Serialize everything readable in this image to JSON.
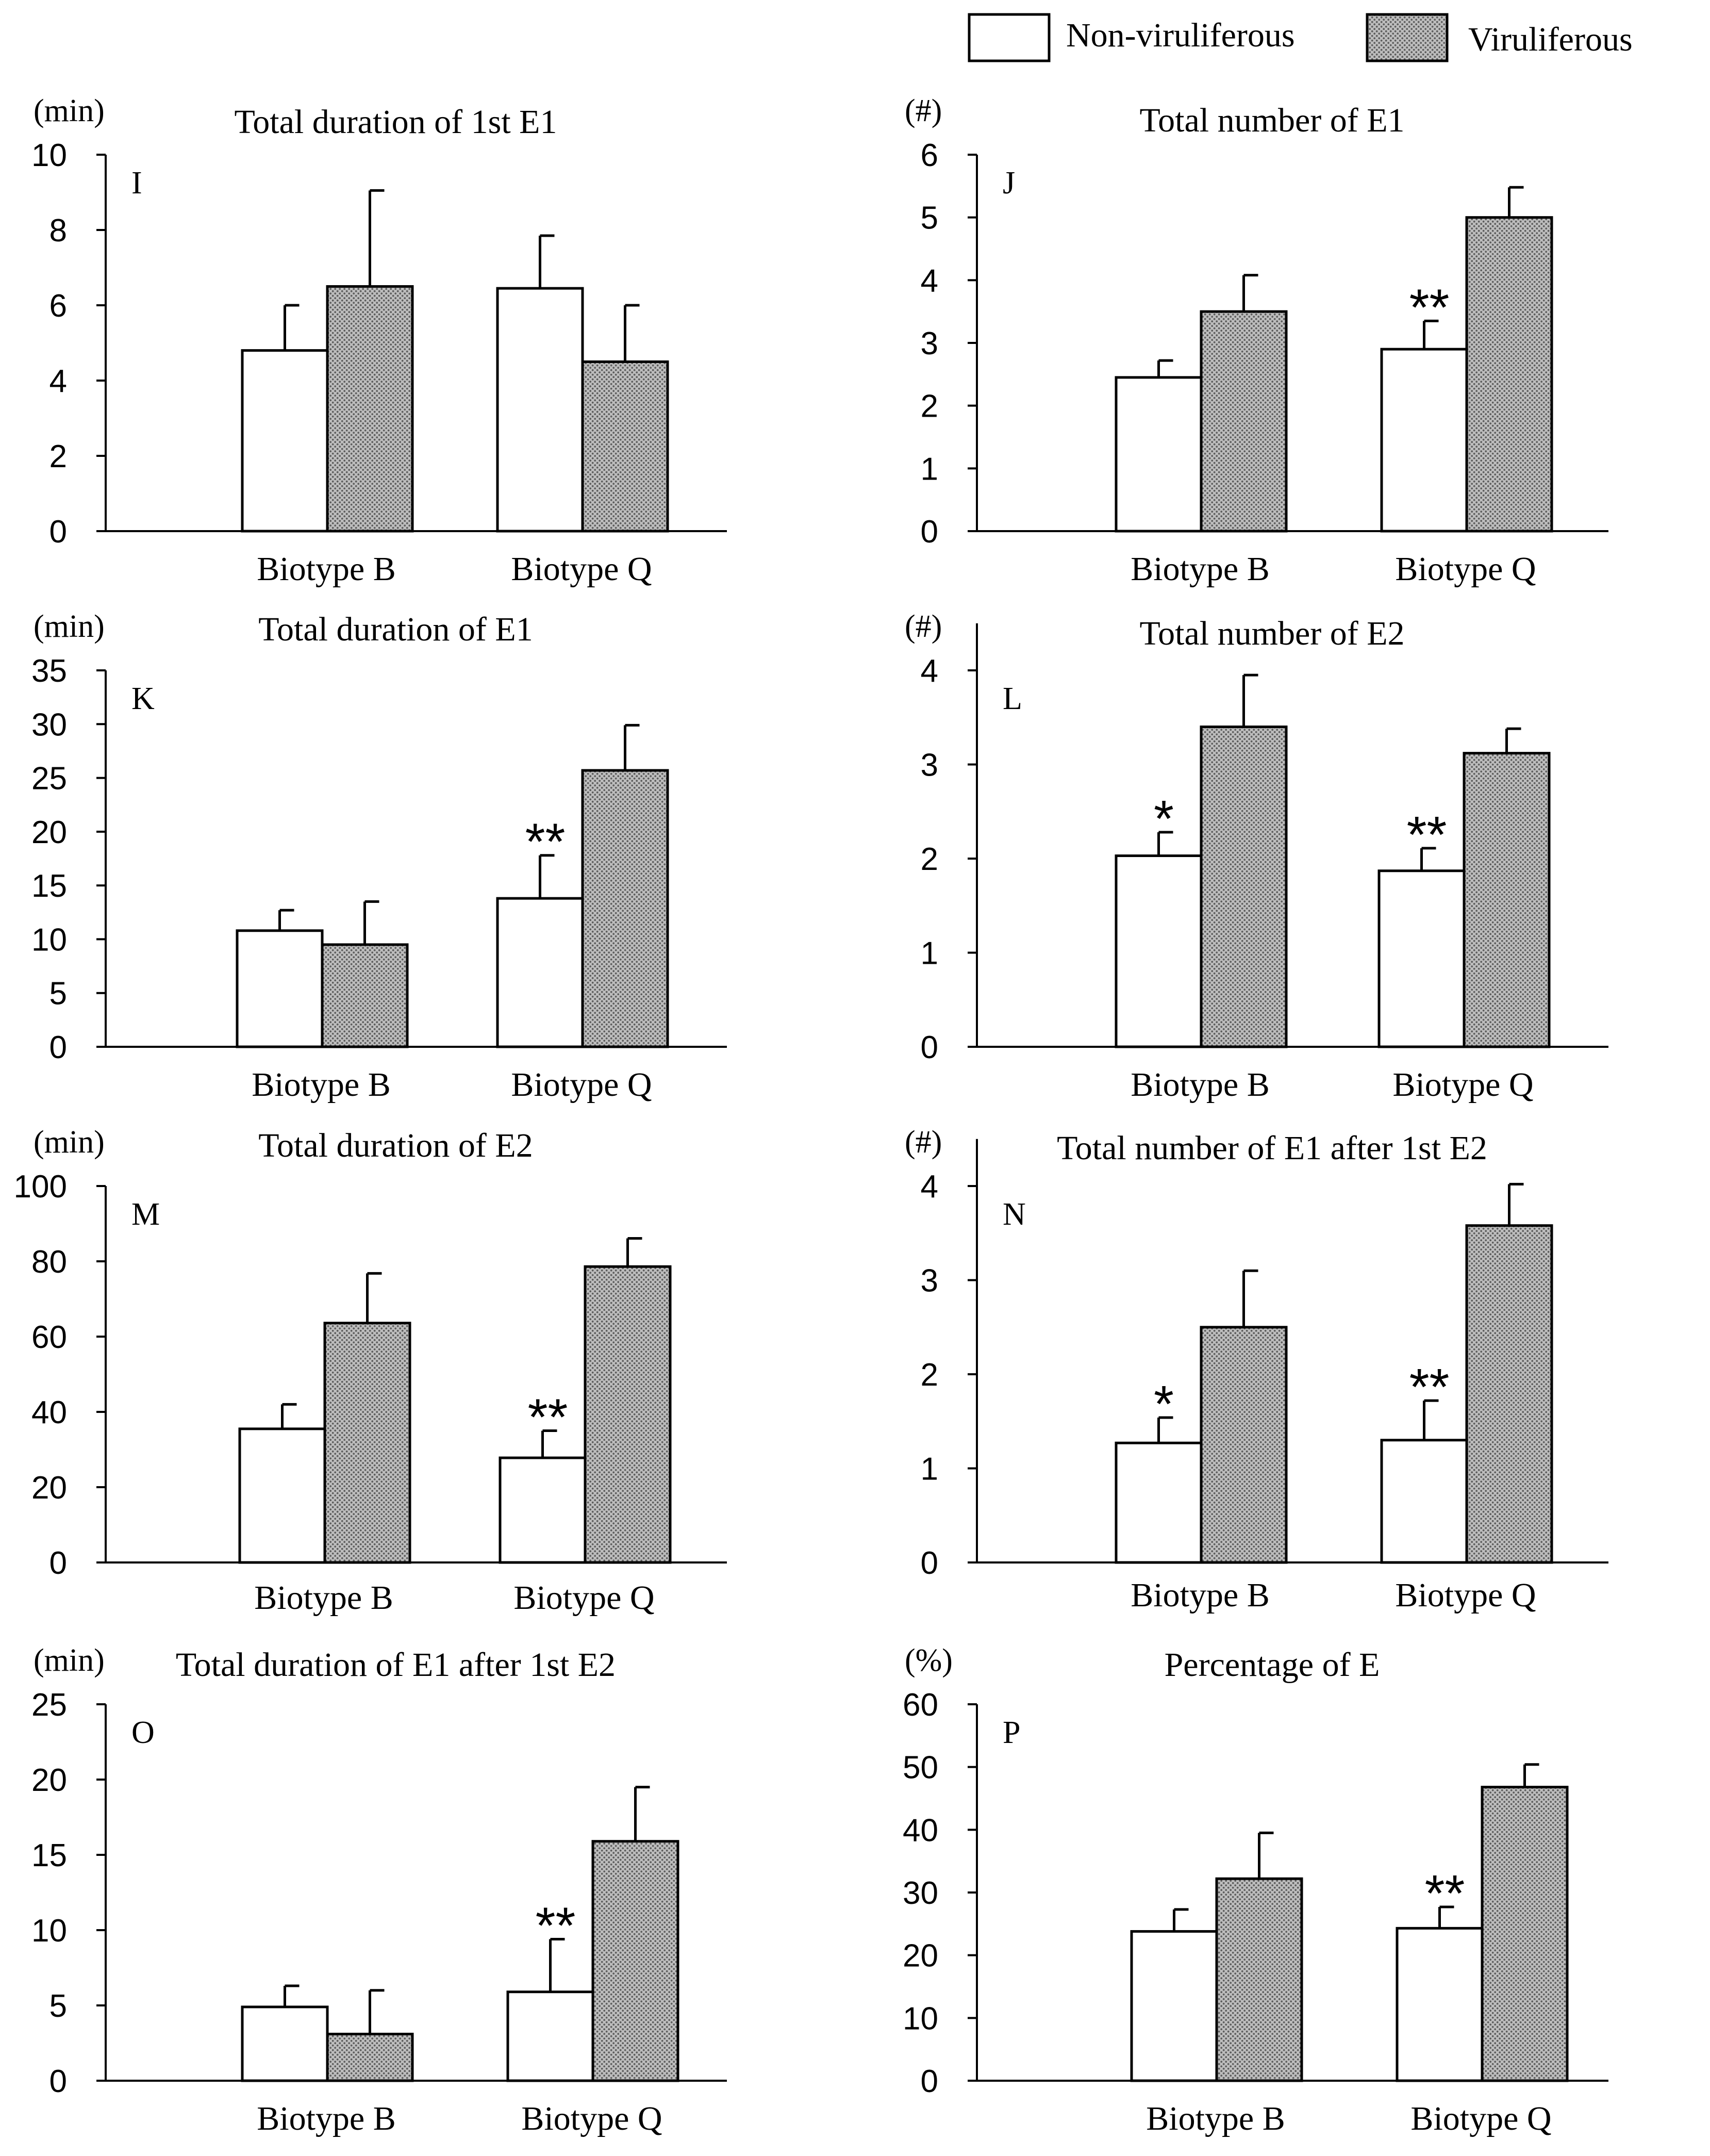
{
  "legend": {
    "items": [
      {
        "label": "Non-viruliferous",
        "fill": "#ffffff"
      },
      {
        "label": "Viruliferous",
        "fill": "#b0b0b0"
      }
    ]
  },
  "colors": {
    "axis": "#000000",
    "bar_stroke": "#000000",
    "hatch_bg": "#bdbdbd",
    "hatch_dot": "#5e5e5e"
  },
  "chart_data": [
    {
      "type": "bar",
      "panel": "I",
      "title": "Total duration of 1st E1",
      "ylabel": "(min)",
      "ylim": [
        0,
        10
      ],
      "yticks": [
        0,
        2,
        4,
        6,
        8,
        10
      ],
      "categories": [
        "Biotype B",
        "Biotype Q"
      ],
      "series": [
        {
          "name": "Non-viruliferous",
          "values": [
            4.8,
            6.45
          ],
          "errors": [
            1.2,
            1.4
          ]
        },
        {
          "name": "Viruliferous",
          "values": [
            6.5,
            4.5
          ],
          "errors": [
            2.55,
            1.5
          ]
        }
      ],
      "annotations": [
        {
          "category": 0,
          "text": ""
        },
        {
          "category": 1,
          "text": ""
        }
      ]
    },
    {
      "type": "bar",
      "panel": "J",
      "title": "Total number of E1",
      "ylabel": "(#)",
      "ylim": [
        0,
        6
      ],
      "yticks": [
        0,
        1,
        2,
        3,
        4,
        5,
        6
      ],
      "categories": [
        "Biotype B",
        "Biotype Q"
      ],
      "series": [
        {
          "name": "Non-viruliferous",
          "values": [
            2.45,
            2.9
          ],
          "errors": [
            0.27,
            0.45
          ]
        },
        {
          "name": "Viruliferous",
          "values": [
            3.5,
            5.0
          ],
          "errors": [
            0.58,
            0.48
          ]
        }
      ],
      "annotations": [
        {
          "category": 0,
          "text": ""
        },
        {
          "category": 1,
          "text": "**"
        }
      ]
    },
    {
      "type": "bar",
      "panel": "K",
      "title": "Total duration of E1",
      "ylabel": "(min)",
      "ylim": [
        0,
        35
      ],
      "yticks": [
        0,
        5,
        10,
        15,
        20,
        25,
        30,
        35
      ],
      "categories": [
        "Biotype B",
        "Biotype Q"
      ],
      "series": [
        {
          "name": "Non-viruliferous",
          "values": [
            10.8,
            13.8
          ],
          "errors": [
            1.9,
            4.0
          ]
        },
        {
          "name": "Viruliferous",
          "values": [
            9.5,
            25.7
          ],
          "errors": [
            4.0,
            4.2
          ]
        }
      ],
      "annotations": [
        {
          "category": 0,
          "text": ""
        },
        {
          "category": 1,
          "text": "**"
        }
      ]
    },
    {
      "type": "bar",
      "panel": "L",
      "title": "Total number of E2",
      "ylabel": "(#)",
      "ylim": [
        0,
        4.5
      ],
      "yticks": [
        0,
        1,
        2,
        3,
        4
      ],
      "categories": [
        "Biotype B",
        "Biotype Q"
      ],
      "series": [
        {
          "name": "Non-viruliferous",
          "values": [
            2.03,
            1.87
          ],
          "errors": [
            0.25,
            0.24
          ]
        },
        {
          "name": "Viruliferous",
          "values": [
            3.4,
            3.12
          ],
          "errors": [
            0.55,
            0.26
          ]
        }
      ],
      "annotations": [
        {
          "category": 0,
          "text": "*"
        },
        {
          "category": 1,
          "text": "**"
        }
      ]
    },
    {
      "type": "bar",
      "panel": "M",
      "title": "Total duration of E2",
      "ylabel": "(min)",
      "ylim": [
        0,
        100
      ],
      "yticks": [
        0,
        20,
        40,
        60,
        80,
        100
      ],
      "categories": [
        "Biotype B",
        "Biotype Q"
      ],
      "series": [
        {
          "name": "Non-viruliferous",
          "values": [
            35.5,
            27.8
          ],
          "errors": [
            6.5,
            7.2
          ]
        },
        {
          "name": "Viruliferous",
          "values": [
            63.6,
            78.6
          ],
          "errors": [
            13.2,
            7.5
          ]
        }
      ],
      "annotations": [
        {
          "category": 0,
          "text": ""
        },
        {
          "category": 1,
          "text": "**"
        }
      ]
    },
    {
      "type": "bar",
      "panel": "N",
      "title": "Total number of E1 after 1st E2",
      "ylabel": "(#)",
      "ylim": [
        0,
        4.5
      ],
      "yticks": [
        0,
        1,
        2,
        3,
        4
      ],
      "categories": [
        "Biotype B",
        "Biotype Q"
      ],
      "series": [
        {
          "name": "Non-viruliferous",
          "values": [
            1.27,
            1.3
          ],
          "errors": [
            0.27,
            0.42
          ]
        },
        {
          "name": "Viruliferous",
          "values": [
            2.5,
            3.58
          ],
          "errors": [
            0.6,
            0.44
          ]
        }
      ],
      "annotations": [
        {
          "category": 0,
          "text": "*"
        },
        {
          "category": 1,
          "text": "**"
        }
      ]
    },
    {
      "type": "bar",
      "panel": "O",
      "title": "Total duration of E1 after 1st E2",
      "ylabel": "(min)",
      "ylim": [
        0,
        25
      ],
      "yticks": [
        0,
        5,
        10,
        15,
        20,
        25
      ],
      "categories": [
        "Biotype B",
        "Biotype Q"
      ],
      "series": [
        {
          "name": "Non-viruliferous",
          "values": [
            4.9,
            5.9
          ],
          "errors": [
            1.4,
            3.5
          ]
        },
        {
          "name": "Viruliferous",
          "values": [
            3.1,
            15.9
          ],
          "errors": [
            2.9,
            3.6
          ]
        }
      ],
      "annotations": [
        {
          "category": 0,
          "text": ""
        },
        {
          "category": 1,
          "text": "**"
        }
      ]
    },
    {
      "type": "bar",
      "panel": "P",
      "title": "Percentage of E",
      "ylabel": "(%)",
      "ylim": [
        0,
        60
      ],
      "yticks": [
        0,
        10,
        20,
        30,
        40,
        50,
        60
      ],
      "categories": [
        "Biotype B",
        "Biotype Q"
      ],
      "series": [
        {
          "name": "Non-viruliferous",
          "values": [
            23.8,
            24.3
          ],
          "errors": [
            3.5,
            3.4
          ]
        },
        {
          "name": "Viruliferous",
          "values": [
            32.2,
            46.8
          ],
          "errors": [
            7.3,
            3.6
          ]
        }
      ],
      "annotations": [
        {
          "category": 0,
          "text": ""
        },
        {
          "category": 1,
          "text": "**"
        }
      ]
    }
  ]
}
